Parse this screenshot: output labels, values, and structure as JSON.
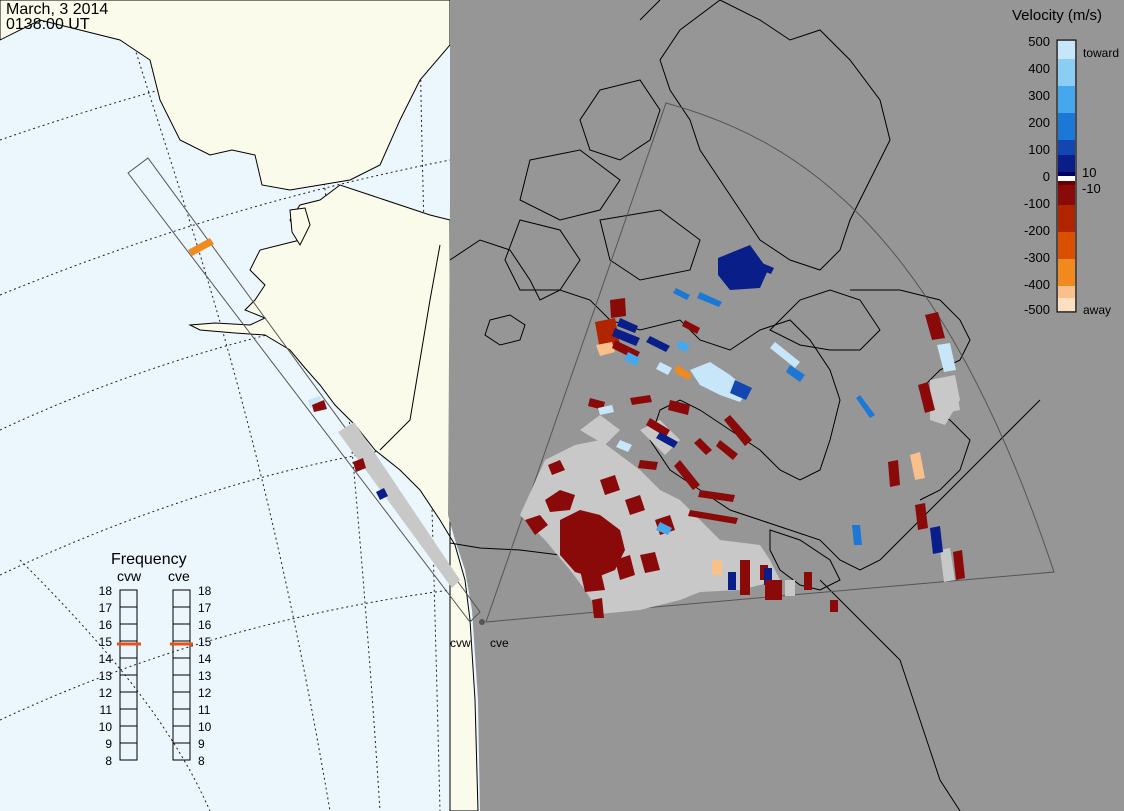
{
  "header": {
    "date": "March, 3 2014",
    "time": "0138:00 UT"
  },
  "velocity_scale": {
    "title": "Velocity (m/s)",
    "ticks": [
      "500",
      "400",
      "300",
      "200",
      "100",
      "10",
      "0",
      "-10",
      "-100",
      "-200",
      "-300",
      "-400",
      "-500"
    ],
    "toward_label": "toward",
    "away_label": "away",
    "colors_top_to_bottom": [
      "#c8e6fa",
      "#8ccdf3",
      "#46a8ec",
      "#1b78d6",
      "#1346b0",
      "#0a1e8a",
      "#000060",
      "#bbbbbb",
      "#6a0000",
      "#8a0a0a",
      "#b02400",
      "#d85000",
      "#f08a1e",
      "#fac08c",
      "#fde0c2"
    ]
  },
  "frequency_panel": {
    "title": "Frequency",
    "radars": [
      {
        "name": "cvw",
        "frequency": 15
      },
      {
        "name": "cve",
        "frequency": 15
      }
    ],
    "ticks": [
      "18",
      "17",
      "16",
      "15",
      "14",
      "13",
      "12",
      "11",
      "10",
      "9",
      "8"
    ]
  },
  "radar_sites": [
    {
      "name": "cvw"
    },
    {
      "name": "cve"
    }
  ],
  "map_colors": {
    "ocean": "#ebf6fd",
    "land_day": "#fbfbeb",
    "night": "#969696",
    "ground_scatter": "#c8c8c8",
    "freq_marker": "#e85018"
  }
}
